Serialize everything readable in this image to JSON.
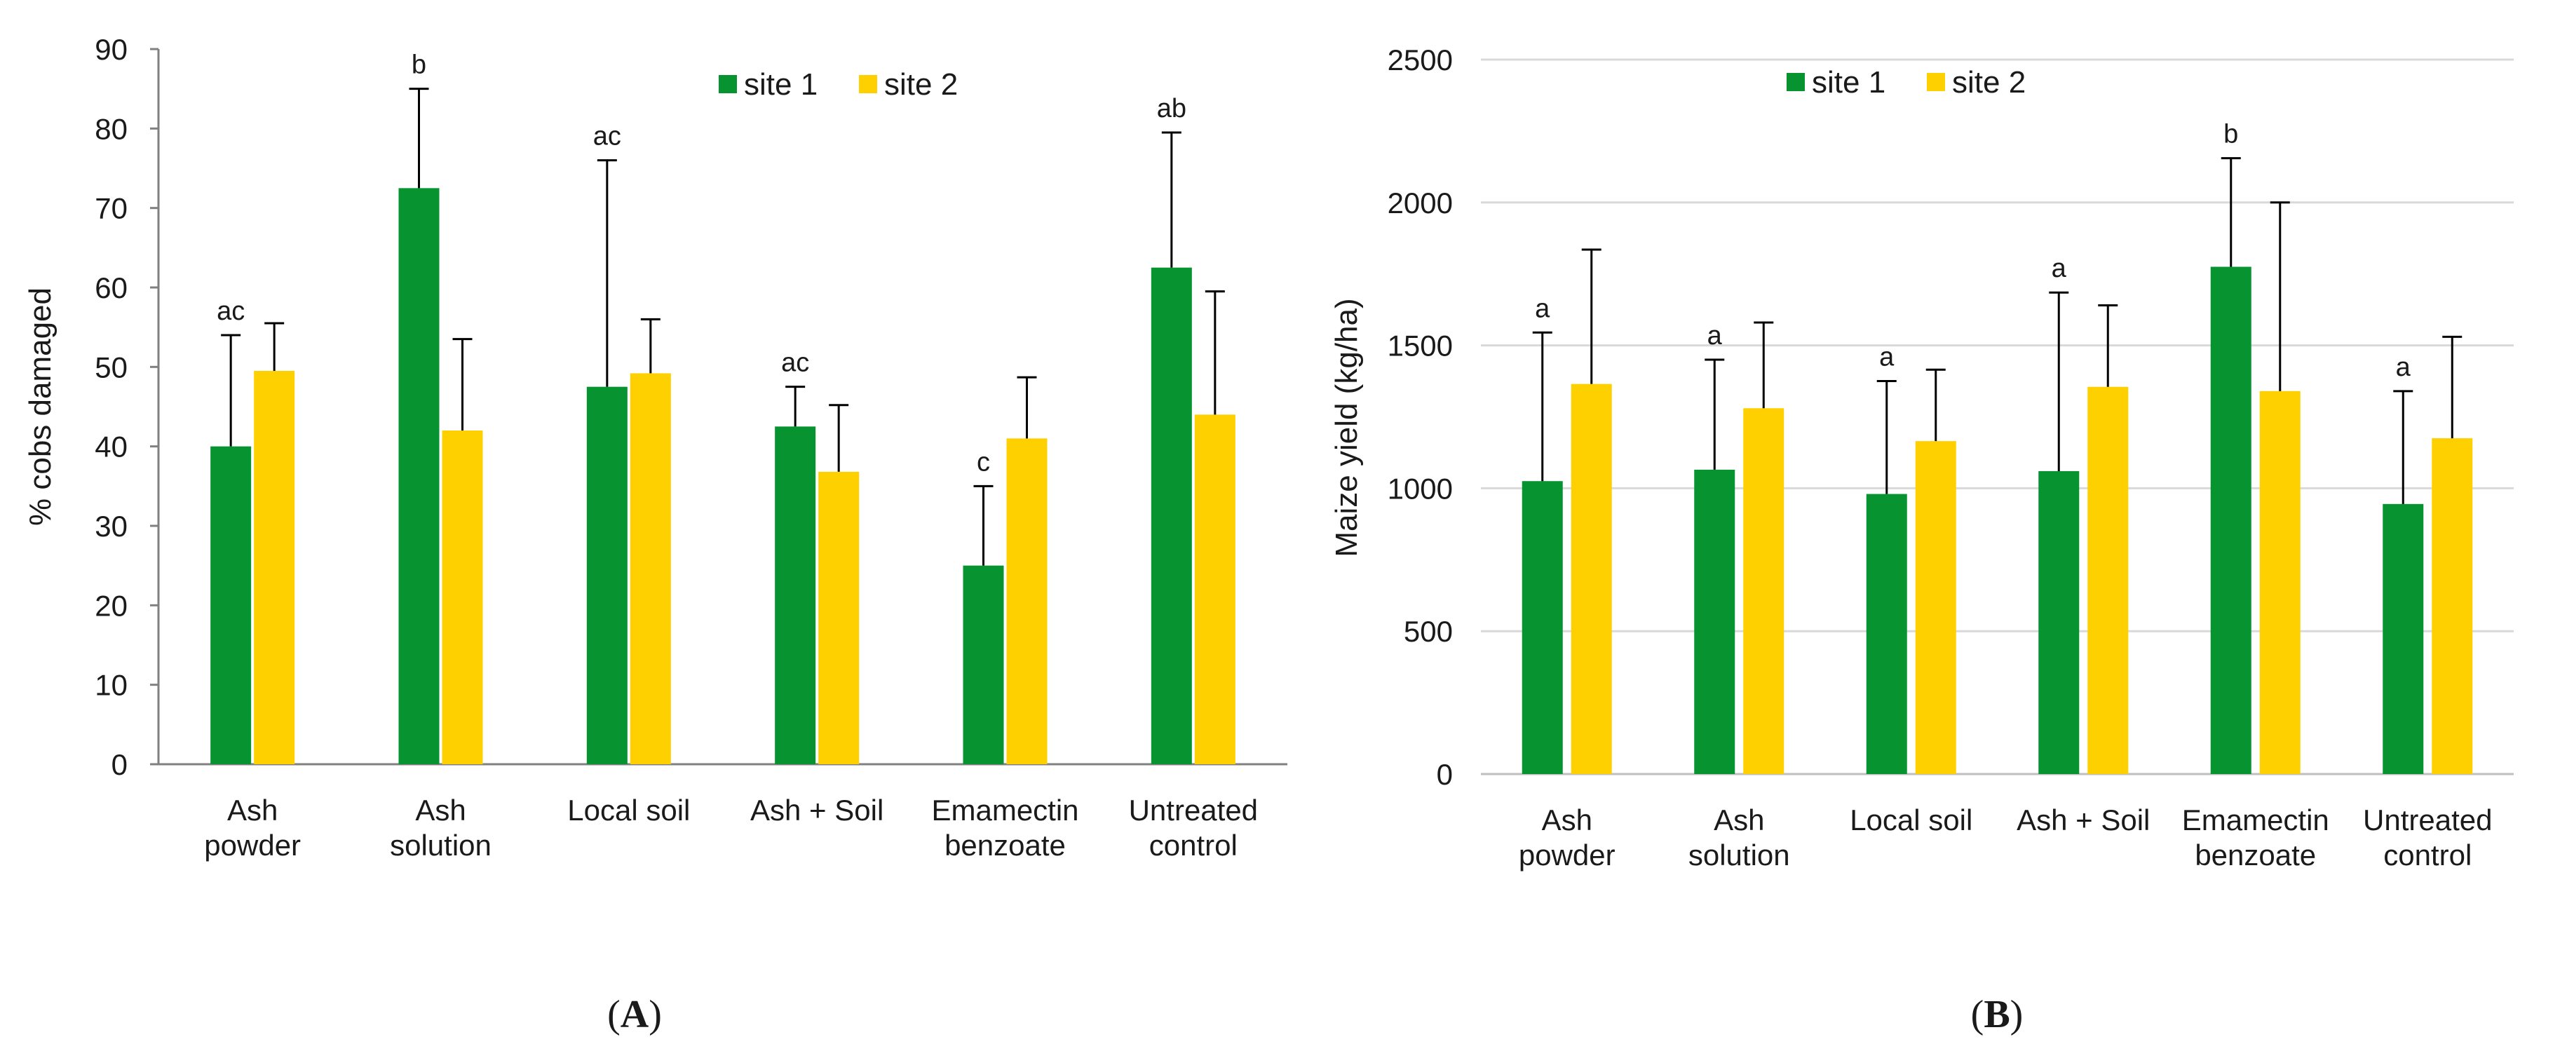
{
  "chart_data": [
    {
      "type": "bar",
      "panel": "A",
      "ylabel": "% cobs damaged",
      "xlabel": "",
      "ylim": [
        0,
        90
      ],
      "yticks": [
        0,
        10,
        20,
        30,
        40,
        50,
        60,
        70,
        80,
        90
      ],
      "grid": false,
      "legend_position": "top-right",
      "categories": [
        [
          "Ash",
          "powder"
        ],
        [
          "Ash",
          "solution"
        ],
        [
          "Local soil"
        ],
        [
          "Ash + Soil"
        ],
        [
          "Emamectin",
          "benzoate"
        ],
        [
          "Untreated",
          "control"
        ]
      ],
      "series": [
        {
          "name": "site 1",
          "color": "#079430",
          "values": [
            40,
            72.5,
            47.5,
            42.5,
            25,
            62.5
          ],
          "errors": [
            14,
            12.5,
            28.5,
            5,
            10,
            17
          ]
        },
        {
          "name": "site 2",
          "color": "#FFD000",
          "values": [
            49.5,
            42,
            49.2,
            36.8,
            41,
            44
          ],
          "errors": [
            6,
            11.5,
            6.8,
            8.4,
            7.7,
            15.5
          ]
        }
      ],
      "significance": [
        "ac",
        "b",
        "ac",
        "ac",
        "c",
        "ab"
      ]
    },
    {
      "type": "bar",
      "panel": "B",
      "ylabel": "Maize yield (kg/ha)",
      "xlabel": "",
      "ylim": [
        0,
        2500
      ],
      "yticks": [
        0,
        500,
        1000,
        1500,
        2000,
        2500
      ],
      "grid": true,
      "legend_position": "top-left",
      "categories": [
        [
          "Ash",
          "powder"
        ],
        [
          "Ash",
          "solution"
        ],
        [
          "Local soil"
        ],
        [
          "Ash + Soil"
        ],
        [
          "Emamectin",
          "benzoate"
        ],
        [
          "Untreated",
          "control"
        ]
      ],
      "series": [
        {
          "name": "site 1",
          "color": "#079430",
          "values": [
            1025,
            1065,
            980,
            1060,
            1775,
            945
          ],
          "errors": [
            520,
            385,
            395,
            625,
            380,
            395
          ]
        },
        {
          "name": "site 2",
          "color": "#FFD000",
          "values": [
            1365,
            1280,
            1165,
            1355,
            1340,
            1175
          ],
          "errors": [
            470,
            300,
            250,
            285,
            660,
            355
          ]
        }
      ],
      "significance": [
        "a",
        "a",
        "a",
        "a",
        "b",
        "a"
      ]
    }
  ],
  "panel_labels": [
    {
      "open": "(",
      "letter": "A",
      "close": ")"
    },
    {
      "open": "(",
      "letter": "B",
      "close": ")"
    }
  ]
}
